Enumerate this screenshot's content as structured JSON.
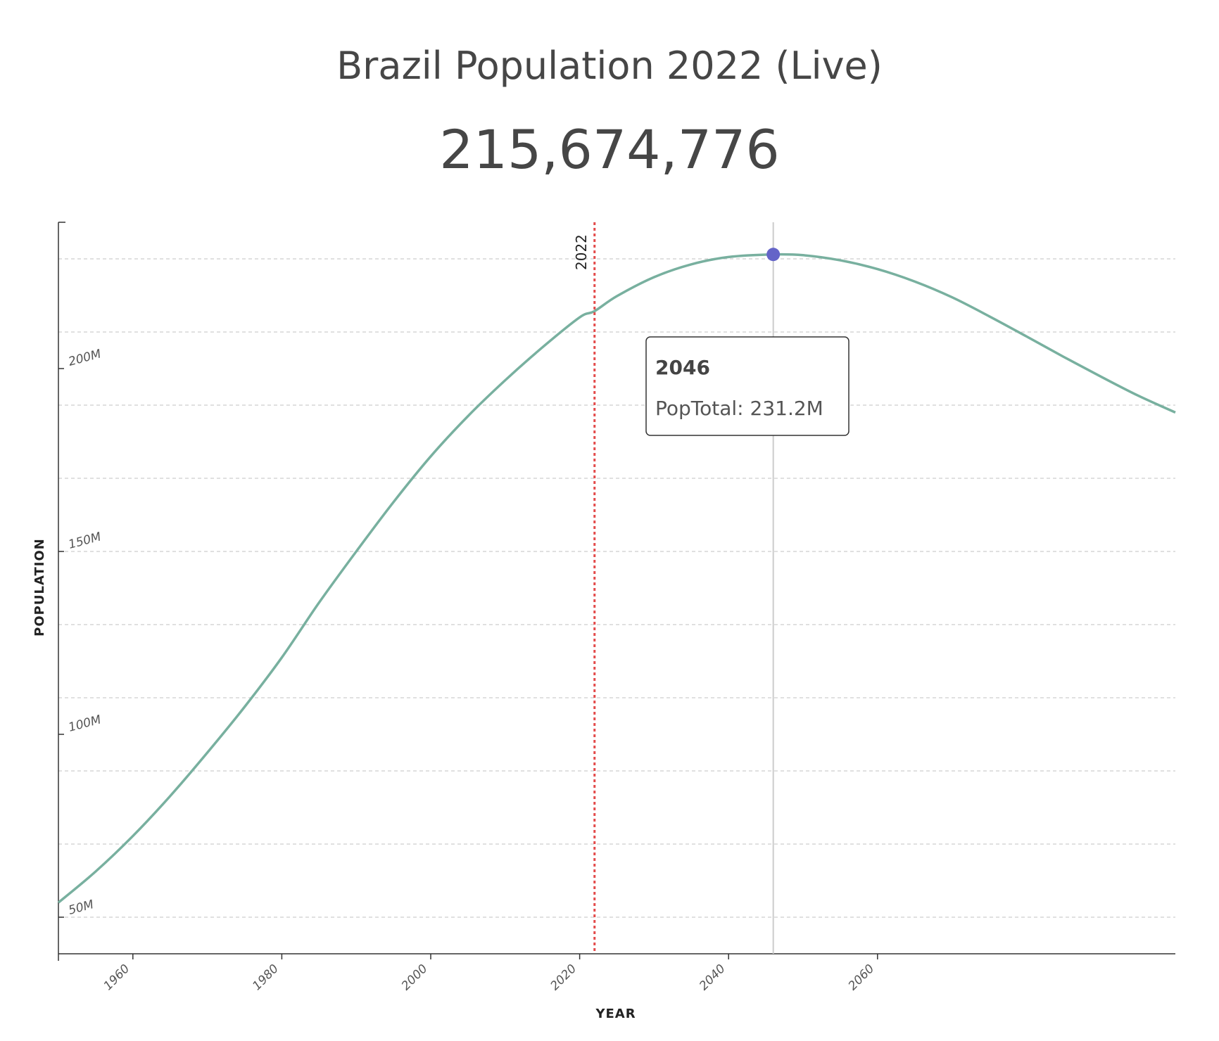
{
  "header": {
    "title": "Brazil Population 2022 (Live)",
    "live_count": "215,674,776"
  },
  "chart_data": {
    "type": "line",
    "xlabel": "YEAR",
    "ylabel": "POPULATION",
    "xlim": [
      1950,
      2100
    ],
    "ylim": [
      40000000,
      240000000
    ],
    "x_ticks": [
      1960,
      1980,
      2000,
      2020,
      2040,
      2060
    ],
    "x_tick_labels": [
      "1960",
      "1980",
      "2000",
      "2020",
      "2040",
      "2060"
    ],
    "y_ticks": [
      50000000,
      100000000,
      150000000,
      200000000
    ],
    "y_tick_labels": [
      "50M",
      "100M",
      "150M",
      "200M"
    ],
    "grid_y": [
      50000000,
      70000000,
      90000000,
      110000000,
      130000000,
      150000000,
      170000000,
      190000000,
      210000000,
      230000000,
      250000000
    ],
    "series": [
      {
        "name": "PopTotal",
        "color": "#78b09f",
        "x": [
          1950,
          1955,
          1960,
          1965,
          1970,
          1975,
          1980,
          1985,
          1990,
          1995,
          2000,
          2005,
          2010,
          2015,
          2020,
          2022,
          2025,
          2030,
          2035,
          2040,
          2046,
          2050,
          2055,
          2060,
          2065,
          2070,
          2075,
          2080,
          2085,
          2090,
          2095,
          2100
        ],
        "y": [
          54000000,
          62500000,
          72200000,
          83100000,
          95000000,
          107500000,
          121000000,
          136000000,
          150000000,
          163500000,
          176000000,
          187000000,
          196800000,
          205800000,
          214000000,
          215700000,
          219800000,
          225000000,
          228500000,
          230500000,
          231200000,
          231000000,
          229600000,
          227200000,
          223800000,
          219500000,
          214300000,
          208800000,
          203200000,
          197800000,
          192600000,
          188000000
        ]
      }
    ],
    "reference_line": {
      "x": 2022,
      "label": "2022",
      "color": "#e34a4a"
    },
    "hover": {
      "x": 2046,
      "y": 231200000,
      "year_label": "2046",
      "value_label": "PopTotal: 231.2M",
      "dot_color": "#6464c8"
    }
  }
}
